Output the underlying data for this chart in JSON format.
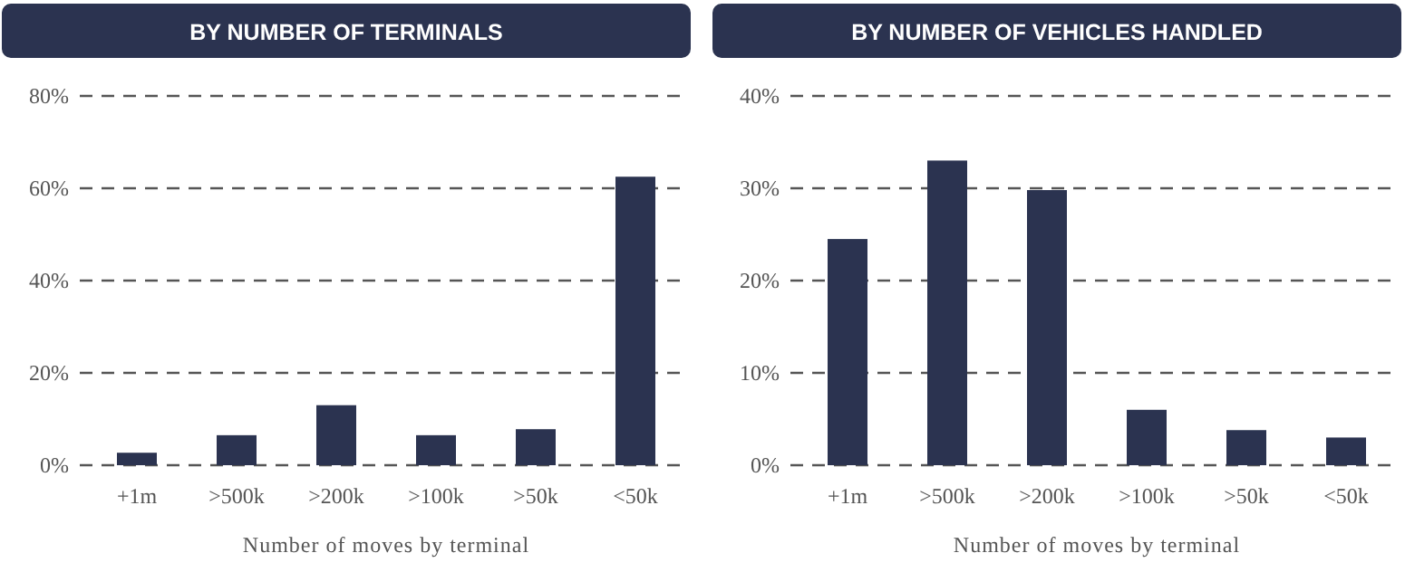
{
  "chart_data": [
    {
      "type": "bar",
      "title": "BY NUMBER OF TERMINALS",
      "xlabel": "Number of moves by terminal",
      "categories": [
        "+1m",
        ">500k",
        ">200k",
        ">100k",
        ">50k",
        "<50k"
      ],
      "values": [
        2.7,
        6.5,
        13,
        6.5,
        7.8,
        62.5
      ],
      "color": "#2b3350",
      "ylim": [
        0,
        80
      ],
      "yticks": [
        {
          "value": 0,
          "label": "0%"
        },
        {
          "value": 20,
          "label": "20%"
        },
        {
          "value": 40,
          "label": "40%"
        },
        {
          "value": 60,
          "label": "60%"
        },
        {
          "value": 80,
          "label": "80%"
        }
      ],
      "grid": "y"
    },
    {
      "type": "bar",
      "title": "BY NUMBER OF VEHICLES HANDLED",
      "xlabel": "Number of moves by terminal",
      "categories": [
        "+1m",
        ">500k",
        ">200k",
        ">100k",
        ">50k",
        "<50k"
      ],
      "values": [
        24.5,
        33,
        29.8,
        6,
        3.8,
        3
      ],
      "color": "#2b3350",
      "ylim": [
        0,
        40
      ],
      "yticks": [
        {
          "value": 0,
          "label": "0%"
        },
        {
          "value": 10,
          "label": "10%"
        },
        {
          "value": 20,
          "label": "20%"
        },
        {
          "value": 30,
          "label": "30%"
        },
        {
          "value": 40,
          "label": "40%"
        }
      ],
      "grid": "y"
    }
  ]
}
